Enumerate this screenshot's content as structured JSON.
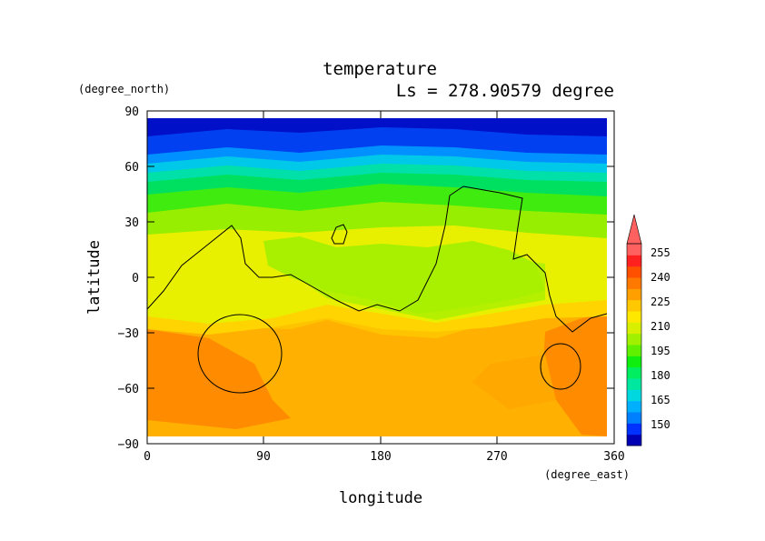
{
  "chart_data": {
    "type": "heatmap",
    "title": "temperature",
    "subtitle": "Ls = 278.90579 degree",
    "xlabel": "longitude",
    "ylabel": "latitude",
    "xunit": "(degree_east)",
    "yunit": "(degree_north)",
    "xlim": [
      0,
      360
    ],
    "ylim": [
      -90,
      90
    ],
    "x_ticks": [
      "0",
      "90",
      "180",
      "270",
      "360"
    ],
    "y_ticks": [
      "90",
      "60",
      "30",
      "0",
      "−30",
      "−60",
      "−90"
    ],
    "colorbar": {
      "labels": [
        "255",
        "240",
        "225",
        "210",
        "195",
        "180",
        "165",
        "150"
      ],
      "colors": [
        "#0000b4",
        "#0032ff",
        "#0080ff",
        "#00b0ff",
        "#00d8e0",
        "#00e8a0",
        "#00ee60",
        "#10ee10",
        "#60f000",
        "#a0f000",
        "#d8f000",
        "#ffe800",
        "#ffc800",
        "#ffa000",
        "#ff7800",
        "#ff5000",
        "#ff2020",
        "#ff6060"
      ]
    },
    "temperature_bands_by_latitude": [
      {
        "lat": 85,
        "t": 140
      },
      {
        "lat": 70,
        "t": 150
      },
      {
        "lat": 60,
        "t": 160
      },
      {
        "lat": 55,
        "t": 170
      },
      {
        "lat": 50,
        "t": 180
      },
      {
        "lat": 45,
        "t": 185
      },
      {
        "lat": 38,
        "t": 195
      },
      {
        "lat": 30,
        "t": 205
      },
      {
        "lat": 20,
        "t": 212
      },
      {
        "lat": 5,
        "t": 215
      },
      {
        "lat": -10,
        "t": 222
      },
      {
        "lat": -30,
        "t": 228
      },
      {
        "lat": -60,
        "t": 232
      },
      {
        "lat": -80,
        "t": 230
      }
    ]
  }
}
